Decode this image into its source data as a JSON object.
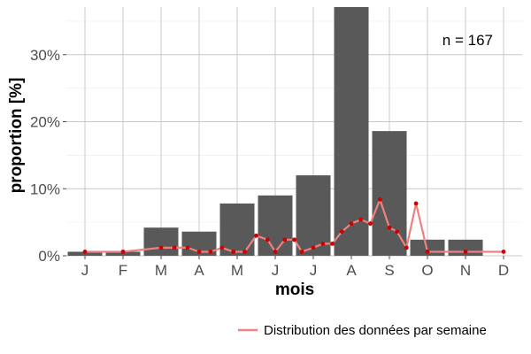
{
  "chart_data": {
    "type": "bar",
    "categories": [
      "J",
      "F",
      "M",
      "A",
      "M",
      "J",
      "J",
      "A",
      "S",
      "O",
      "N",
      "D"
    ],
    "values": [
      0.6,
      0.6,
      4.2,
      3.6,
      7.8,
      9.0,
      12.0,
      37.1,
      18.6,
      2.4,
      2.4,
      0.0
    ],
    "xlabel": "mois",
    "ylabel": "proportion [%]",
    "ylim": [
      0,
      37.1
    ],
    "yticks": [
      0,
      10,
      20,
      30
    ],
    "ytick_labels": [
      "0%",
      "10%",
      "20%",
      "30%"
    ],
    "annotation": "n = 167",
    "grid": true,
    "bar_color": "#595959",
    "line_series": {
      "name": "Distribution des données par semaine",
      "color": "#f08080",
      "point_color": "#cc0000",
      "x": [
        0,
        1,
        2,
        2.35,
        2.7,
        3,
        3.3,
        3.6,
        3.9,
        4.2,
        4.5,
        4.8,
        5,
        5.25,
        5.5,
        5.7,
        6,
        6.25,
        6.5,
        6.75,
        7,
        7.25,
        7.5,
        7.75,
        8,
        8.2,
        8.45,
        8.7,
        9,
        10,
        11
      ],
      "y": [
        0.6,
        0.6,
        1.2,
        1.2,
        1.2,
        0.6,
        0.6,
        1.2,
        0.6,
        0.6,
        3.0,
        2.4,
        0.6,
        2.4,
        2.4,
        0.6,
        1.2,
        1.8,
        1.8,
        3.6,
        4.8,
        5.4,
        4.8,
        8.4,
        4.2,
        3.6,
        1.2,
        7.8,
        0.6,
        0.6,
        0.6
      ]
    }
  }
}
